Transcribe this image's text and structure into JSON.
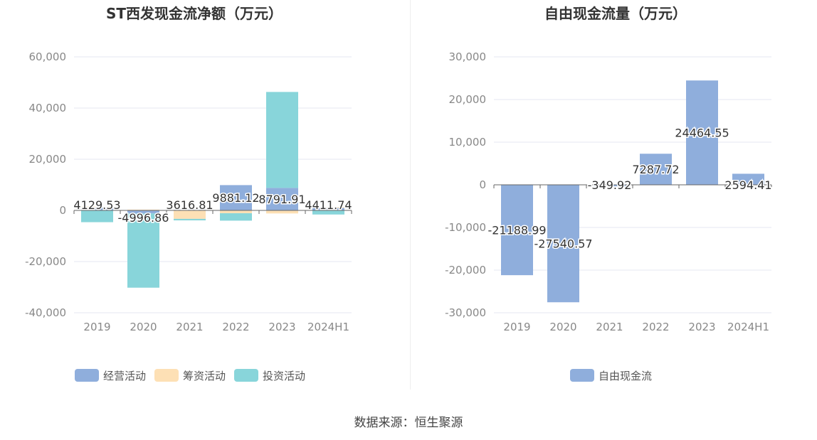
{
  "colors": {
    "operating": "#8faedc",
    "financing": "#fde0b5",
    "investing": "#88d5da",
    "fcf": "#8faedc",
    "grid": "#e4e7f0",
    "axis": "#666666",
    "tick_text": "#888888",
    "title_text": "#333333",
    "label_text": "#333333"
  },
  "chart_data": [
    {
      "type": "bar",
      "stacked": true,
      "title": "ST西发现金流净额（万元）",
      "categories": [
        "2019",
        "2020",
        "2021",
        "2022",
        "2023",
        "2024H1"
      ],
      "ylim": [
        -40000,
        60000
      ],
      "yticks": [
        60000,
        40000,
        20000,
        0,
        -20000,
        -40000
      ],
      "ytick_labels": [
        "60,000",
        "40,000",
        "20,000",
        "0",
        "-20,000",
        "-40,000"
      ],
      "series": [
        {
          "name": "经营活动",
          "color_key": "operating",
          "values": [
            1200,
            -1200,
            200,
            9881.12,
            8791.91,
            1000
          ]
        },
        {
          "name": "筹资活动",
          "color_key": "financing",
          "values": [
            300,
            300,
            -3300,
            -1100,
            -1200,
            300
          ]
        },
        {
          "name": "投资活动",
          "color_key": "investing",
          "values": [
            -4600,
            -29000,
            -600,
            -2900,
            37500,
            -1600
          ]
        }
      ],
      "data_labels": [
        "4129.53",
        "-4996.86",
        "3616.81",
        "9881.12",
        "8791.91",
        "4411.74"
      ],
      "legend": [
        "经营活动",
        "筹资活动",
        "投资活动"
      ],
      "legend_position": "bottom-center",
      "grid": true
    },
    {
      "type": "bar",
      "title": "自由现金流量（万元）",
      "categories": [
        "2019",
        "2020",
        "2021",
        "2022",
        "2023",
        "2024H1"
      ],
      "ylim": [
        -30000,
        30000
      ],
      "yticks": [
        30000,
        20000,
        10000,
        0,
        -10000,
        -20000,
        -30000
      ],
      "ytick_labels": [
        "30,000",
        "20,000",
        "10,000",
        "0",
        "-10,000",
        "-20,000",
        "-30,000"
      ],
      "series": [
        {
          "name": "自由现金流",
          "color_key": "fcf",
          "values": [
            -21188.99,
            -27540.57,
            -349.92,
            7287.72,
            24464.55,
            2594.41
          ]
        }
      ],
      "data_labels": [
        "-21188.99",
        "-27540.57",
        "-349.92",
        "7287.72",
        "24464.55",
        "2594.41"
      ],
      "legend": [
        "自由现金流"
      ],
      "legend_position": "bottom-center",
      "grid": true
    }
  ],
  "source": "数据来源：恒生聚源"
}
